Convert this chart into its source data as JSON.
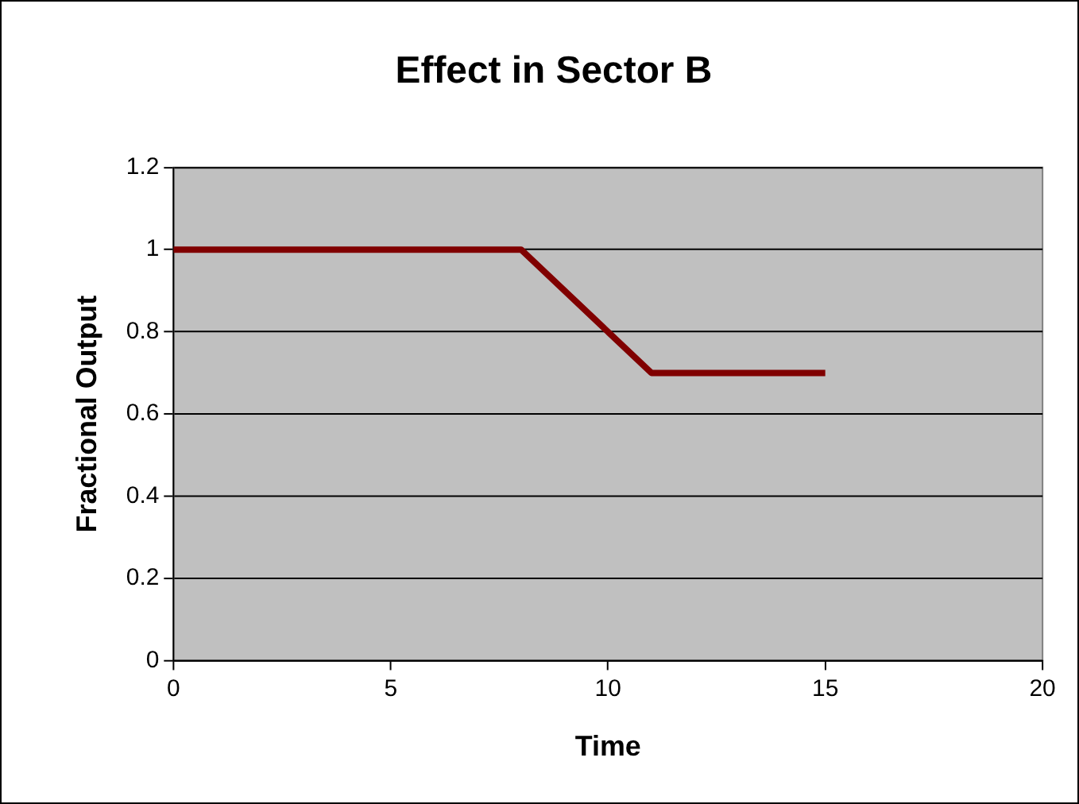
{
  "chart_data": {
    "type": "line",
    "title": "Effect in Sector B",
    "xlabel": "Time",
    "ylabel": "Fractional Output",
    "x": [
      0,
      8,
      11,
      15
    ],
    "series": [
      {
        "color": "#800000",
        "values": [
          1,
          1,
          0.7,
          0.7
        ]
      }
    ],
    "xlim": [
      0,
      20
    ],
    "xticks": [
      0,
      5,
      10,
      15,
      20
    ],
    "ylim": [
      0,
      1.2
    ],
    "yticks": [
      0,
      0.2,
      0.4,
      0.6,
      0.8,
      1,
      1.2
    ],
    "grid": "y",
    "legend": false,
    "marker": "none",
    "line_style": "solid"
  }
}
